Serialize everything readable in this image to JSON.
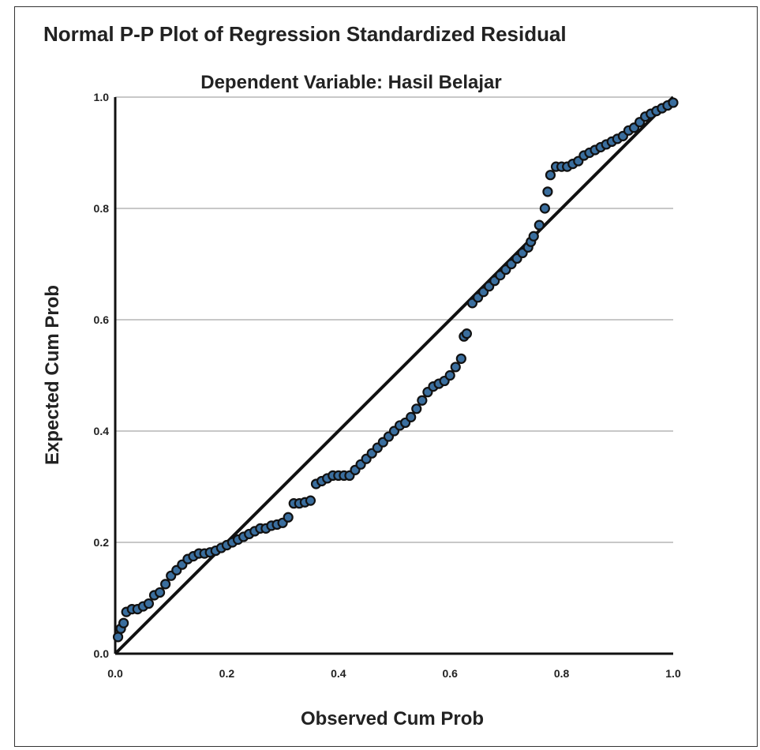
{
  "chart_data": {
    "type": "scatter",
    "title": "Normal P-P Plot of Regression Standardized Residual",
    "subtitle": "Dependent Variable: Hasil Belajar",
    "xlabel": "Observed Cum Prob",
    "ylabel": "Expected Cum Prob",
    "xlim": [
      0,
      1
    ],
    "ylim": [
      0,
      1
    ],
    "xticks": [
      "0.0",
      "0.2",
      "0.4",
      "0.6",
      "0.8",
      "1.0"
    ],
    "yticks": [
      "0.0",
      "0.2",
      "0.4",
      "0.6",
      "0.8",
      "1.0"
    ],
    "grid": "horizontal",
    "reference_line": [
      [
        0,
        0
      ],
      [
        1,
        1
      ]
    ],
    "point_color": "#3a6e9e",
    "line_color": "#111111",
    "grid_color": "#c8c8c8",
    "series": [
      {
        "points": [
          [
            0.005,
            0.03
          ],
          [
            0.01,
            0.045
          ],
          [
            0.015,
            0.055
          ],
          [
            0.02,
            0.075
          ],
          [
            0.03,
            0.08
          ],
          [
            0.04,
            0.08
          ],
          [
            0.05,
            0.085
          ],
          [
            0.06,
            0.09
          ],
          [
            0.07,
            0.105
          ],
          [
            0.08,
            0.11
          ],
          [
            0.09,
            0.125
          ],
          [
            0.1,
            0.14
          ],
          [
            0.11,
            0.15
          ],
          [
            0.12,
            0.16
          ],
          [
            0.13,
            0.17
          ],
          [
            0.14,
            0.175
          ],
          [
            0.15,
            0.18
          ],
          [
            0.16,
            0.18
          ],
          [
            0.17,
            0.182
          ],
          [
            0.18,
            0.185
          ],
          [
            0.19,
            0.19
          ],
          [
            0.2,
            0.195
          ],
          [
            0.21,
            0.2
          ],
          [
            0.22,
            0.205
          ],
          [
            0.23,
            0.21
          ],
          [
            0.24,
            0.215
          ],
          [
            0.25,
            0.22
          ],
          [
            0.26,
            0.225
          ],
          [
            0.27,
            0.225
          ],
          [
            0.28,
            0.23
          ],
          [
            0.29,
            0.232
          ],
          [
            0.3,
            0.235
          ],
          [
            0.31,
            0.245
          ],
          [
            0.32,
            0.27
          ],
          [
            0.33,
            0.27
          ],
          [
            0.34,
            0.272
          ],
          [
            0.35,
            0.275
          ],
          [
            0.36,
            0.305
          ],
          [
            0.37,
            0.31
          ],
          [
            0.38,
            0.315
          ],
          [
            0.39,
            0.32
          ],
          [
            0.4,
            0.32
          ],
          [
            0.41,
            0.32
          ],
          [
            0.42,
            0.32
          ],
          [
            0.43,
            0.33
          ],
          [
            0.44,
            0.34
          ],
          [
            0.45,
            0.35
          ],
          [
            0.46,
            0.36
          ],
          [
            0.47,
            0.37
          ],
          [
            0.48,
            0.38
          ],
          [
            0.49,
            0.39
          ],
          [
            0.5,
            0.4
          ],
          [
            0.51,
            0.41
          ],
          [
            0.52,
            0.415
          ],
          [
            0.53,
            0.425
          ],
          [
            0.54,
            0.44
          ],
          [
            0.55,
            0.455
          ],
          [
            0.56,
            0.47
          ],
          [
            0.57,
            0.48
          ],
          [
            0.58,
            0.485
          ],
          [
            0.59,
            0.49
          ],
          [
            0.6,
            0.5
          ],
          [
            0.61,
            0.515
          ],
          [
            0.62,
            0.53
          ],
          [
            0.625,
            0.57
          ],
          [
            0.63,
            0.575
          ],
          [
            0.64,
            0.63
          ],
          [
            0.65,
            0.64
          ],
          [
            0.66,
            0.65
          ],
          [
            0.67,
            0.66
          ],
          [
            0.68,
            0.67
          ],
          [
            0.69,
            0.68
          ],
          [
            0.7,
            0.69
          ],
          [
            0.71,
            0.7
          ],
          [
            0.72,
            0.71
          ],
          [
            0.73,
            0.72
          ],
          [
            0.74,
            0.73
          ],
          [
            0.745,
            0.74
          ],
          [
            0.75,
            0.75
          ],
          [
            0.76,
            0.77
          ],
          [
            0.77,
            0.8
          ],
          [
            0.775,
            0.83
          ],
          [
            0.78,
            0.86
          ],
          [
            0.79,
            0.875
          ],
          [
            0.8,
            0.875
          ],
          [
            0.81,
            0.875
          ],
          [
            0.82,
            0.88
          ],
          [
            0.83,
            0.885
          ],
          [
            0.84,
            0.895
          ],
          [
            0.85,
            0.9
          ],
          [
            0.86,
            0.905
          ],
          [
            0.87,
            0.91
          ],
          [
            0.88,
            0.915
          ],
          [
            0.89,
            0.92
          ],
          [
            0.9,
            0.925
          ],
          [
            0.91,
            0.93
          ],
          [
            0.92,
            0.94
          ],
          [
            0.93,
            0.945
          ],
          [
            0.94,
            0.955
          ],
          [
            0.95,
            0.965
          ],
          [
            0.96,
            0.97
          ],
          [
            0.97,
            0.975
          ],
          [
            0.98,
            0.98
          ],
          [
            0.99,
            0.985
          ],
          [
            1.0,
            0.99
          ]
        ]
      }
    ]
  }
}
